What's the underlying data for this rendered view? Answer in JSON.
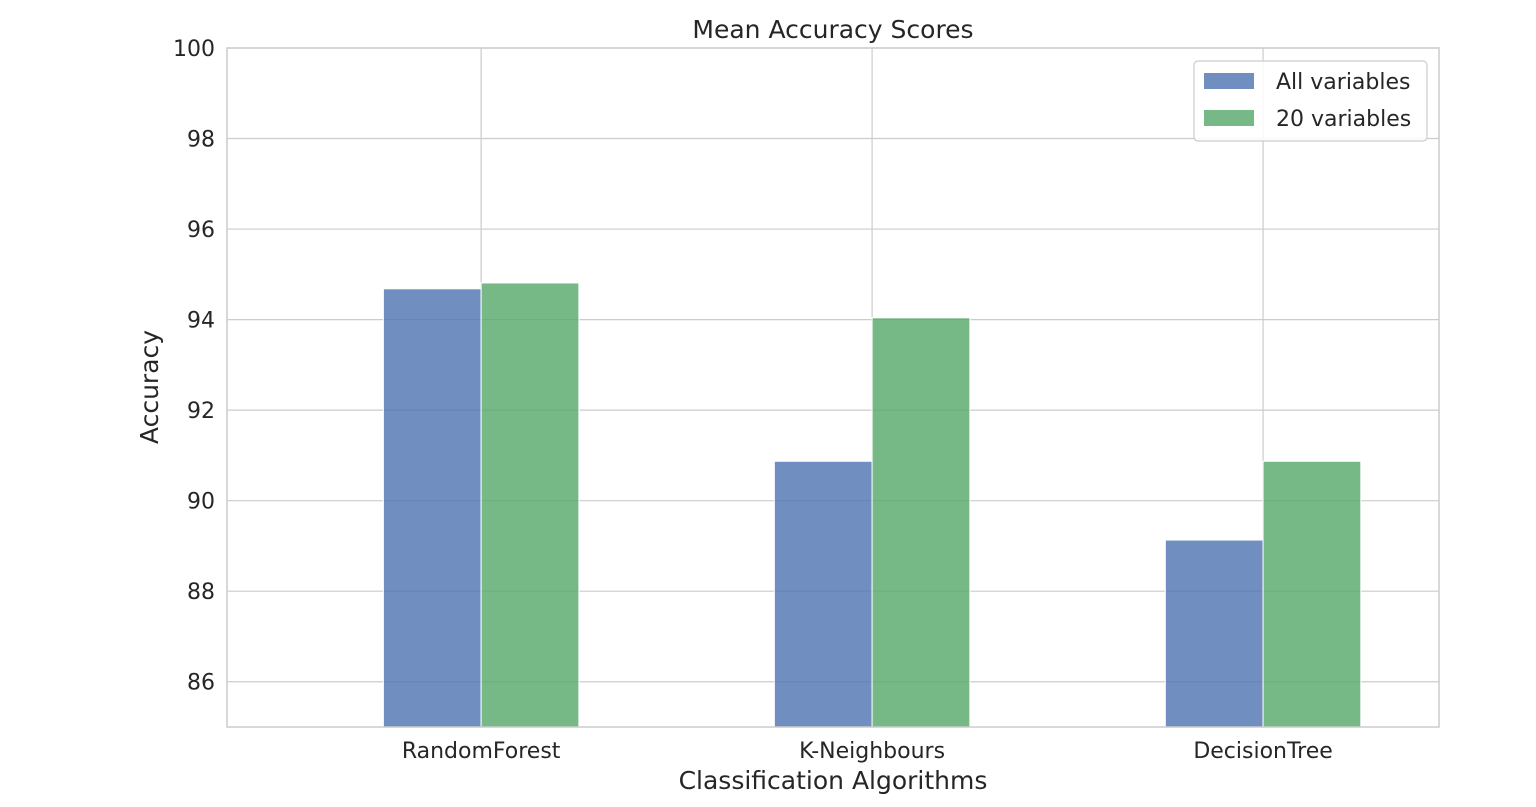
{
  "chart_data": {
    "type": "bar",
    "title": "Mean Accuracy Scores",
    "xlabel": "Classification Algorithms",
    "ylabel": "Accuracy",
    "categories": [
      "RandomForest",
      "K-Neighbours",
      "DecisionTree"
    ],
    "series": [
      {
        "name": "All variables",
        "values": [
          94.68,
          90.87,
          89.13
        ],
        "color": "#4c72b0"
      },
      {
        "name": "20 variables",
        "values": [
          94.81,
          94.04,
          90.87
        ],
        "color": "#55a868"
      }
    ],
    "ylim": [
      85,
      100
    ],
    "yticks": [
      86,
      88,
      90,
      92,
      94,
      96,
      98,
      100
    ],
    "grid": true,
    "legend_position": "top-right",
    "colors": {
      "grid": "#cccccc",
      "frame": "#cccccc",
      "text": "#262626"
    }
  }
}
